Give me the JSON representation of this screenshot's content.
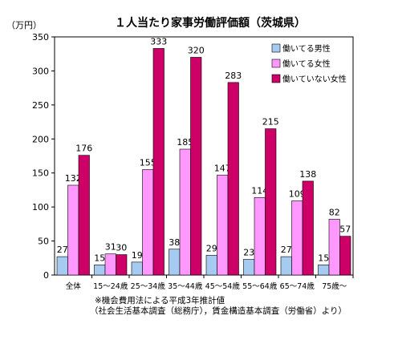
{
  "chart_data": {
    "type": "bar",
    "title": "１人当たり家事労働評価額（茨城県）",
    "ylabel": "（万円）",
    "ylim": [
      0,
      350
    ],
    "yticks": [
      0,
      50,
      100,
      150,
      200,
      250,
      300,
      350
    ],
    "grid": false,
    "legend": "top-right",
    "categories": [
      "全体",
      "15～24歳",
      "25～34歳",
      "35～44歳",
      "45～54歳",
      "55～64歳",
      "65～74歳",
      "75歳～"
    ],
    "series": [
      {
        "name": "働いてる男性",
        "color": "#a6caf0",
        "values": [
          27,
          15,
          19,
          38,
          29,
          23,
          27,
          15
        ]
      },
      {
        "name": "働いてる女性",
        "color": "#ff99ff",
        "values": [
          132,
          31,
          155,
          185,
          147,
          114,
          109,
          82
        ]
      },
      {
        "name": "働いていない女性",
        "color": "#cc0066",
        "values": [
          176,
          30,
          333,
          320,
          283,
          215,
          138,
          57
        ]
      }
    ],
    "notes": [
      "※機会費用法による平成3年推計値",
      "（社会生活基本調査（総務庁），賃金構造基本調査（労働省）より）"
    ]
  }
}
